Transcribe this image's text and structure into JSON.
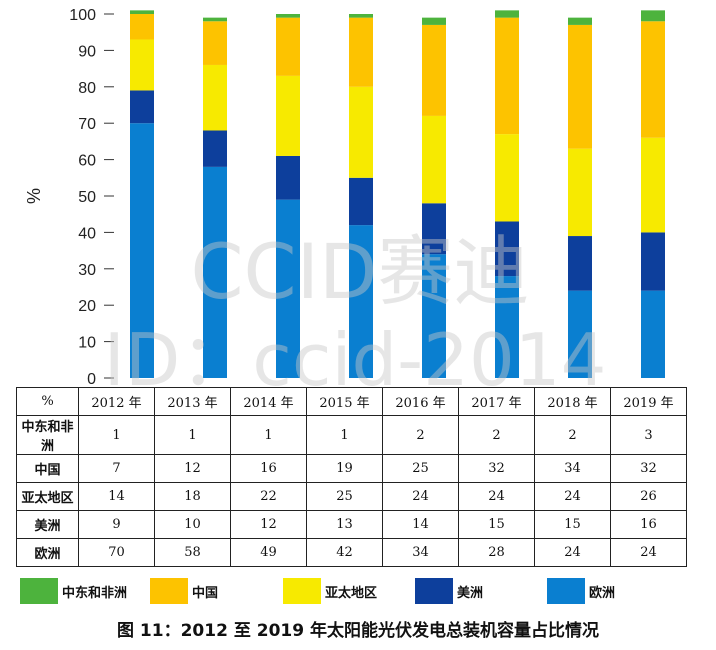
{
  "chart_data": {
    "type": "bar",
    "stacked": true,
    "ylabel": "%",
    "ylim": [
      0,
      100
    ],
    "yticks": [
      0,
      10,
      20,
      30,
      40,
      50,
      60,
      70,
      80,
      90,
      100
    ],
    "categories": [
      "2012 年",
      "2013 年",
      "2014 年",
      "2015 年",
      "2016 年",
      "2017 年",
      "2018 年",
      "2019 年"
    ],
    "series": [
      {
        "name": "欧洲",
        "color": "#0a7fd0",
        "values": [
          70,
          58,
          49,
          42,
          34,
          28,
          24,
          24
        ]
      },
      {
        "name": "美洲",
        "color": "#0d3f9c",
        "values": [
          9,
          10,
          12,
          13,
          14,
          15,
          15,
          16
        ]
      },
      {
        "name": "亚太地区",
        "color": "#f7ea00",
        "values": [
          14,
          18,
          22,
          25,
          24,
          24,
          24,
          26
        ]
      },
      {
        "name": "中国",
        "color": "#fdc300",
        "values": [
          7,
          12,
          16,
          19,
          25,
          32,
          34,
          32
        ]
      },
      {
        "name": "中东和非洲",
        "color": "#4db33d",
        "values": [
          1,
          1,
          1,
          1,
          2,
          2,
          2,
          3
        ]
      }
    ],
    "grid": false
  },
  "table": {
    "corner": "%",
    "columns": [
      "2012 年",
      "2013 年",
      "2014 年",
      "2015 年",
      "2016 年",
      "2017 年",
      "2018 年",
      "2019 年"
    ],
    "rows": [
      {
        "label": "中东和非洲",
        "values": [
          "1",
          "1",
          "1",
          "1",
          "2",
          "2",
          "2",
          "3"
        ]
      },
      {
        "label": "中国",
        "values": [
          "7",
          "12",
          "16",
          "19",
          "25",
          "32",
          "34",
          "32"
        ]
      },
      {
        "label": "亚太地区",
        "values": [
          "14",
          "18",
          "22",
          "25",
          "24",
          "24",
          "24",
          "26"
        ]
      },
      {
        "label": "美洲",
        "values": [
          "9",
          "10",
          "12",
          "13",
          "14",
          "15",
          "15",
          "16"
        ]
      },
      {
        "label": "欧洲",
        "values": [
          "70",
          "58",
          "49",
          "42",
          "34",
          "28",
          "24",
          "24"
        ]
      }
    ]
  },
  "legend": [
    {
      "label": "中东和非洲",
      "color": "#4db33d"
    },
    {
      "label": "中国",
      "color": "#fdc300"
    },
    {
      "label": "亚太地区",
      "color": "#f7ea00"
    },
    {
      "label": "美洲",
      "color": "#0d3f9c"
    },
    {
      "label": "欧洲",
      "color": "#0a7fd0"
    }
  ],
  "caption": "图 11：2012 至 2019 年太阳能光伏发电总装机容量占比情况",
  "watermark": {
    "line1": "CCID赛迪",
    "line2": "ID：ccid-2014"
  }
}
